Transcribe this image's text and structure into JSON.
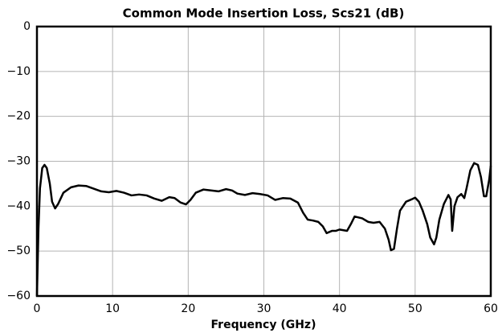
{
  "chart_data": {
    "type": "line",
    "title": "Common Mode Insertion Loss, Scs21 (dB)",
    "x_label": "Frequency (GHz)",
    "xlim": [
      0,
      60
    ],
    "xticks": [
      0,
      10,
      20,
      30,
      40,
      50,
      60
    ],
    "ylim": [
      -60,
      0
    ],
    "yticks": [
      {
        "value": -60,
        "label": "−60"
      },
      {
        "value": -50,
        "label": "−50"
      },
      {
        "value": -40,
        "label": "−40"
      },
      {
        "value": -30,
        "label": "−30"
      },
      {
        "value": -20,
        "label": "−20"
      },
      {
        "value": -10,
        "label": "−10"
      },
      0
    ],
    "grid": true,
    "series": [
      {
        "color": "#000000",
        "x": [
          0,
          0.2,
          0.4,
          0.7,
          1.0,
          1.3,
          1.7,
          2.0,
          2.4,
          2.8,
          3.5,
          4.5,
          5.5,
          6.5,
          7.5,
          8.5,
          9.5,
          10.5,
          11.5,
          12.5,
          13.5,
          14.5,
          15.5,
          16.5,
          17.5,
          18.2,
          19,
          19.7,
          20.3,
          21,
          22,
          23,
          24,
          25,
          25.8,
          26.5,
          27.5,
          28.5,
          29.5,
          30.5,
          31.5,
          32.5,
          33.5,
          34.5,
          35.2,
          35.8,
          36.5,
          37.2,
          37.8,
          38.3,
          39,
          39.5,
          40,
          41,
          41.5,
          42,
          43,
          43.8,
          44.5,
          45.3,
          46,
          46.5,
          46.8,
          47.2,
          47.6,
          48,
          48.8,
          49.5,
          50,
          50.5,
          51,
          51.6,
          52,
          52.5,
          52.8,
          53.2,
          53.8,
          54.4,
          54.7,
          54.9,
          55.2,
          55.6,
          56.1,
          56.5,
          56.8,
          57.3,
          57.8,
          58.3,
          58.7,
          59.1,
          59.4,
          59.8,
          60
        ],
        "values": [
          -60,
          -45,
          -36,
          -31.5,
          -30.8,
          -31.5,
          -35,
          -39,
          -40.5,
          -39.5,
          -37,
          -35.8,
          -35.4,
          -35.5,
          -36.1,
          -36.7,
          -36.9,
          -36.6,
          -37,
          -37.6,
          -37.4,
          -37.6,
          -38.3,
          -38.8,
          -38,
          -38.2,
          -39.2,
          -39.6,
          -38.6,
          -37,
          -36.3,
          -36.5,
          -36.7,
          -36.2,
          -36.5,
          -37.2,
          -37.5,
          -37.1,
          -37.3,
          -37.6,
          -38.6,
          -38.2,
          -38.3,
          -39.2,
          -41.5,
          -43,
          -43.2,
          -43.5,
          -44.5,
          -46,
          -45.5,
          -45.5,
          -45.2,
          -45.5,
          -44,
          -42.3,
          -42.7,
          -43.5,
          -43.7,
          -43.5,
          -45,
          -47.5,
          -49.8,
          -49.5,
          -45,
          -41,
          -39,
          -38.5,
          -38.1,
          -39,
          -41,
          -44,
          -47,
          -48.5,
          -47,
          -43,
          -39.5,
          -37.5,
          -38.5,
          -45.5,
          -40,
          -38,
          -37.3,
          -38.2,
          -36,
          -32,
          -30.4,
          -30.8,
          -33.5,
          -37.8,
          -37.8,
          -34,
          -31
        ]
      }
    ]
  }
}
